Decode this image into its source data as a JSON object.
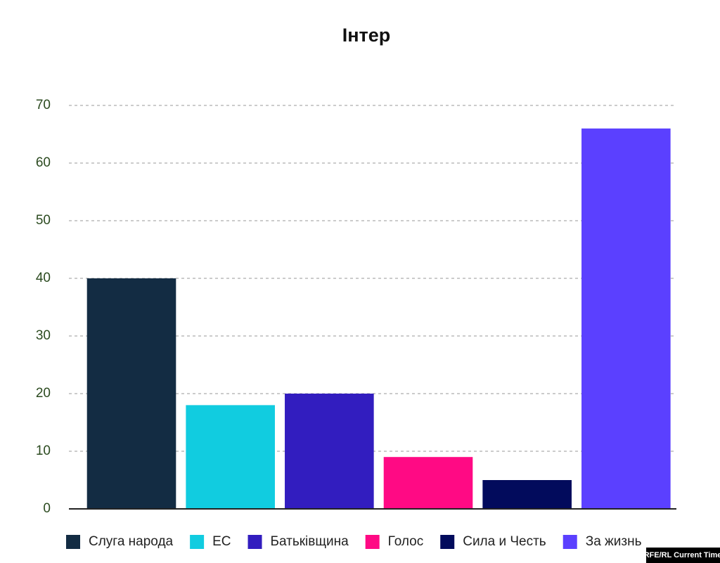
{
  "chart_data": {
    "type": "bar",
    "title": "Інтер",
    "series": [
      {
        "name": "Слуга народа",
        "color": "#132c43",
        "values": [
          40
        ]
      },
      {
        "name": "ЕС",
        "color": "#11cce0",
        "values": [
          18
        ]
      },
      {
        "name": "Батьківщина",
        "color": "#321dbf",
        "values": [
          20
        ]
      },
      {
        "name": "Голос",
        "color": "#ff0a84",
        "values": [
          9
        ]
      },
      {
        "name": "Сила и Честь",
        "color": "#020b5c",
        "values": [
          5
        ]
      },
      {
        "name": "За жизнь",
        "color": "#5b40ff",
        "values": [
          66
        ]
      }
    ],
    "ylim": [
      0,
      70
    ],
    "yticks": [
      0,
      10,
      20,
      30,
      40,
      50,
      60,
      70
    ],
    "grid": true,
    "legend": "bottom"
  },
  "credit": "RFE/RL Current Time"
}
